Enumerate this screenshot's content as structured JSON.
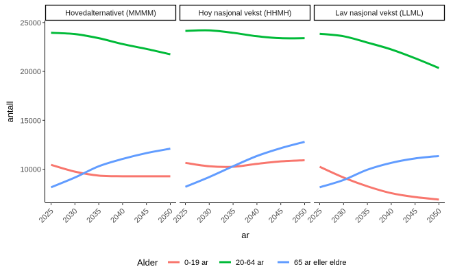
{
  "chart_data": {
    "type": "line",
    "xlabel": "ar",
    "ylabel": "antall",
    "x": [
      2025,
      2030,
      2035,
      2040,
      2045,
      2050
    ],
    "x_ticks": [
      "2025",
      "2030",
      "2035",
      "2040",
      "2045",
      "2050"
    ],
    "ylim": [
      6600,
      25200
    ],
    "y_ticks": [
      10000,
      15000,
      20000,
      25000
    ],
    "y_tick_labels": [
      "10000",
      "15000",
      "20000",
      "25000"
    ],
    "grid": false,
    "legend": {
      "title": "Alder",
      "placement": "bottom",
      "entries": [
        {
          "label": "0-19 ar",
          "color": "#F8766D"
        },
        {
          "label": "20-64 ar",
          "color": "#00BA38"
        },
        {
          "label": "65 ar eller eldre",
          "color": "#619CFF"
        }
      ]
    },
    "panels": [
      {
        "title": "Hovedalternativet (MMMM)",
        "series": [
          {
            "name": "0-19 ar",
            "values": [
              10450,
              9750,
              9350,
              9280,
              9280,
              9280
            ]
          },
          {
            "name": "20-64 ar",
            "values": [
              23950,
              23820,
              23400,
              22800,
              22300,
              21750
            ]
          },
          {
            "name": "65 ar eller eldre",
            "values": [
              8150,
              9150,
              10300,
              11050,
              11650,
              12100
            ]
          }
        ]
      },
      {
        "title": "Hoy nasjonal vekst (HHMH)",
        "series": [
          {
            "name": "0-19 ar",
            "values": [
              10650,
              10300,
              10250,
              10550,
              10800,
              10920
            ]
          },
          {
            "name": "20-64 ar",
            "values": [
              24150,
              24200,
              23950,
              23600,
              23400,
              23400
            ]
          },
          {
            "name": "65 ar eller eldre",
            "values": [
              8200,
              9200,
              10300,
              11350,
              12150,
              12800
            ]
          }
        ]
      },
      {
        "title": "Lav nasjonal vekst (LLML)",
        "series": [
          {
            "name": "0-19 ar",
            "values": [
              10250,
              9150,
              8250,
              7550,
              7150,
              6900
            ]
          },
          {
            "name": "20-64 ar",
            "values": [
              23850,
              23600,
              22950,
              22250,
              21350,
              20350
            ]
          },
          {
            "name": "65 ar eller eldre",
            "values": [
              8150,
              8900,
              9950,
              10650,
              11100,
              11350
            ]
          }
        ]
      }
    ]
  }
}
